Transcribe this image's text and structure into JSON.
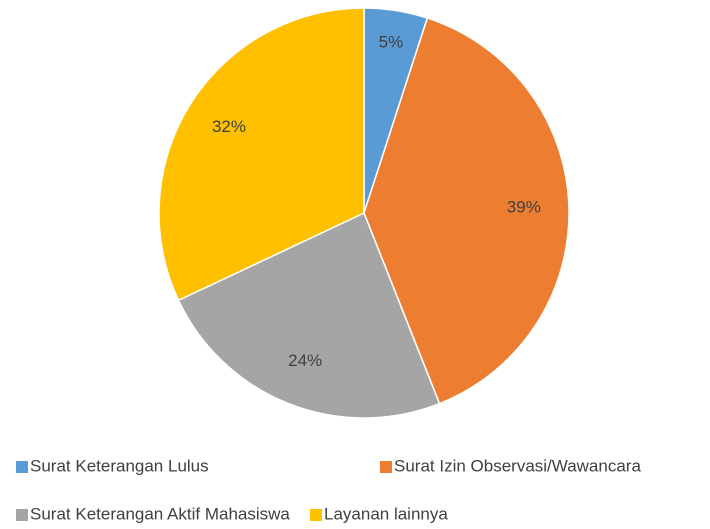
{
  "chart_data": {
    "type": "pie",
    "categories": [
      "Surat Keterangan Lulus",
      "Surat Izin Observasi/Wawancara",
      "Surat Keterangan Aktif Mahasiswa",
      "Layanan lainnya"
    ],
    "values": [
      5,
      39,
      24,
      32
    ],
    "value_labels": [
      "5%",
      "39%",
      "24%",
      "32%"
    ],
    "colors": [
      "#5b9bd5",
      "#ed7d31",
      "#a5a5a5",
      "#ffc000"
    ],
    "legend": "bottom"
  }
}
